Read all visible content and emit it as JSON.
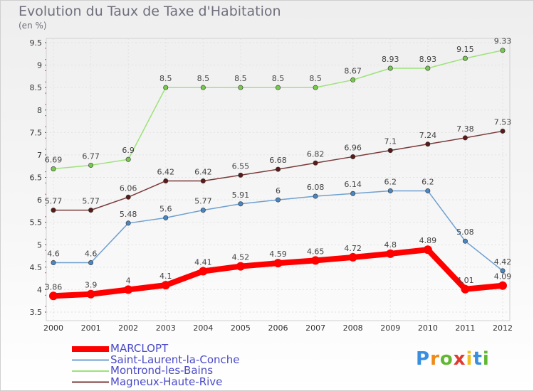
{
  "chart_data": {
    "type": "line",
    "title": "Evolution du Taux de Taxe d'Habitation",
    "unit_label": "(en %)",
    "x": [
      "2000",
      "2001",
      "2002",
      "2003",
      "2004",
      "2005",
      "2006",
      "2007",
      "2008",
      "2009",
      "2010",
      "2011",
      "2012"
    ],
    "ylim": [
      3.5,
      9.5
    ],
    "yticks": [
      "3.5",
      "4",
      "4.5",
      "5",
      "5.5",
      "6",
      "6.5",
      "7",
      "7.5",
      "8",
      "8.5",
      "9",
      "9.5"
    ],
    "grid": true,
    "legend_position": "bottom-left",
    "series": [
      {
        "name": "MARCLOPT",
        "color": "#ff0000",
        "point_color": "#ff0000",
        "width": 8,
        "values": [
          3.86,
          3.9,
          4,
          4.1,
          4.41,
          4.52,
          4.59,
          4.65,
          4.72,
          4.8,
          4.89,
          4.01,
          4.09
        ],
        "labels": [
          "3.86",
          "3.9",
          "4",
          "4.1",
          "4.41",
          "4.52",
          "4.59",
          "4.65",
          "4.72",
          "4.8",
          "4.89",
          "4.01",
          "4.09"
        ]
      },
      {
        "name": "Saint-Laurent-la-Conche",
        "color": "#6fa0d0",
        "point_color": "#4a86c0",
        "width": 1.5,
        "values": [
          4.6,
          4.6,
          5.48,
          5.6,
          5.77,
          5.91,
          6,
          6.08,
          6.14,
          6.2,
          6.2,
          5.08,
          4.42
        ],
        "labels": [
          "4.6",
          "4.6",
          "5.48",
          "5.6",
          "5.77",
          "5.91",
          "6",
          "6.08",
          "6.14",
          "6.2",
          "6.2",
          "5.08",
          "4.42"
        ]
      },
      {
        "name": "Montrond-les-Bains",
        "color": "#9ee27a",
        "point_color": "#78c850",
        "width": 1.5,
        "values": [
          6.69,
          6.77,
          6.9,
          8.5,
          8.5,
          8.5,
          8.5,
          8.5,
          8.67,
          8.93,
          8.93,
          9.15,
          9.33
        ],
        "labels": [
          "6.69",
          "6.77",
          "6.9",
          "8.5",
          "8.5",
          "8.5",
          "8.5",
          "8.5",
          "8.67",
          "8.93",
          "8.93",
          "9.15",
          "9.33"
        ]
      },
      {
        "name": "Magneux-Haute-Rive",
        "color": "#7a3a3a",
        "point_color": "#5a1a1a",
        "width": 1.5,
        "values": [
          5.77,
          5.77,
          6.06,
          6.42,
          6.42,
          6.55,
          6.68,
          6.82,
          6.96,
          7.1,
          7.24,
          7.38,
          7.53
        ],
        "labels": [
          "5.77",
          "5.77",
          "6.06",
          "6.42",
          "6.42",
          "6.55",
          "6.68",
          "6.82",
          "6.96",
          "7.1",
          "7.24",
          "7.38",
          "7.53"
        ]
      }
    ]
  },
  "legend": {
    "items": [
      "MARCLOPT",
      "Saint-Laurent-la-Conche",
      "Montrond-les-Bains",
      "Magneux-Haute-Rive"
    ]
  },
  "logo": {
    "text": "Proxiti",
    "letter_colors": [
      "#3a8ee0",
      "#f08a18",
      "#60b830",
      "#e03a30",
      "#f0c020",
      "#3a8ee0",
      "#60b830"
    ]
  }
}
